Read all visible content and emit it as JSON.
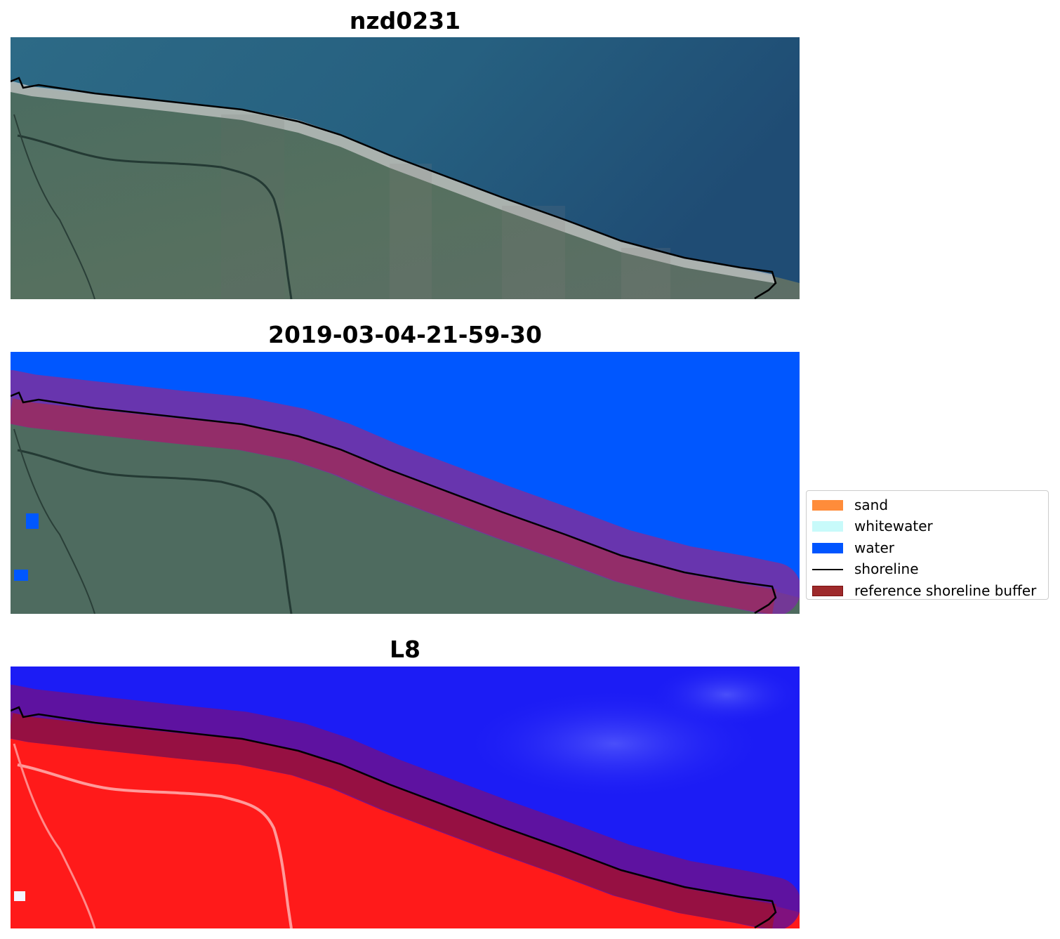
{
  "panels": [
    {
      "title": "nzd0231",
      "kind": "rgb"
    },
    {
      "title": "2019-03-04-21-59-30",
      "kind": "classified"
    },
    {
      "title": "L8",
      "kind": "mndwi"
    }
  ],
  "legend": {
    "items": [
      {
        "label": "sand",
        "type": "patch",
        "color": "#ff8c3a"
      },
      {
        "label": "whitewater",
        "type": "patch",
        "color": "#c8fafa"
      },
      {
        "label": "water",
        "type": "patch",
        "color": "#0055ff"
      },
      {
        "label": "shoreline",
        "type": "line",
        "color": "#000000"
      },
      {
        "label": "reference shoreline buffer",
        "type": "patch",
        "color": "#9e2a2b",
        "edge": "#7a1010"
      }
    ]
  },
  "colors": {
    "sea": "#265f82",
    "land": "#4e6b5f",
    "beach": "#d4d8dc",
    "classified_water": "#0057ff",
    "buffer_overlay": "#9e2a5a",
    "mndwi_water": "#1c1cf5",
    "mndwi_land": "#ff1a1a",
    "shoreline": "#000000"
  }
}
